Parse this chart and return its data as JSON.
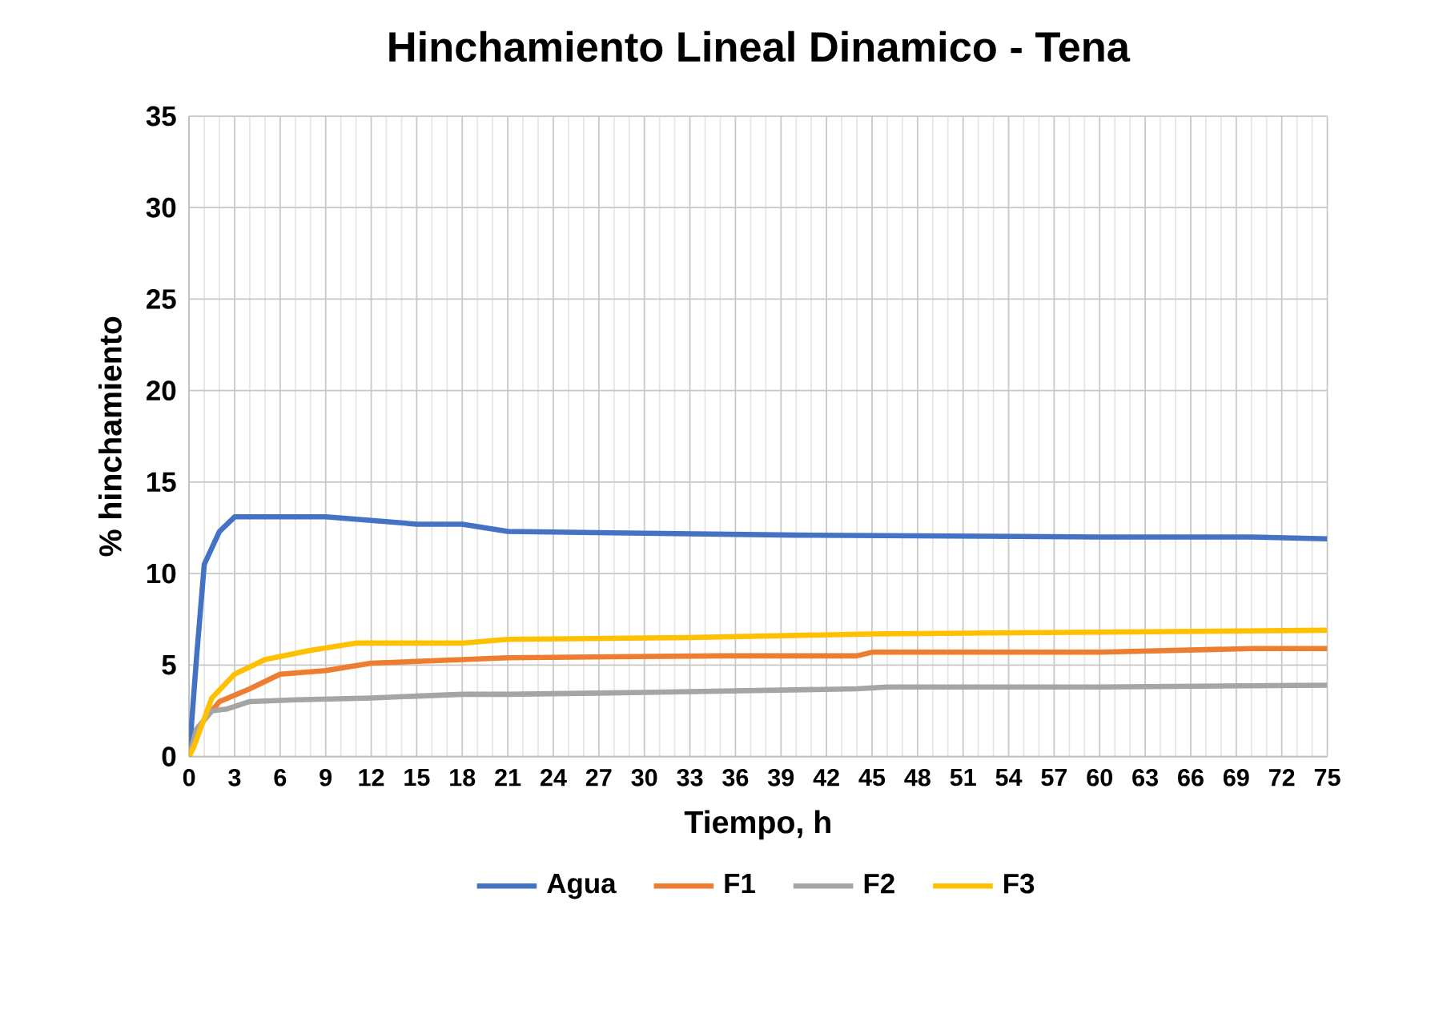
{
  "chart_data": {
    "type": "line",
    "title": "Hinchamiento Lineal Dinamico - Tena",
    "xlabel": "Tiempo, h",
    "ylabel": "% hinchamiento",
    "xlim": [
      0,
      75
    ],
    "xticks": [
      0,
      3,
      6,
      9,
      12,
      15,
      18,
      21,
      24,
      27,
      30,
      33,
      36,
      39,
      42,
      45,
      48,
      51,
      54,
      57,
      60,
      63,
      66,
      69,
      72,
      75
    ],
    "ylim": [
      0,
      35
    ],
    "yticks": [
      0,
      5,
      10,
      15,
      20,
      25,
      30,
      35
    ],
    "grid": true,
    "legend": "bottom",
    "marker": "none",
    "line_style": "solid",
    "series": [
      {
        "name": "Agua",
        "color": "#4472c4",
        "x": [
          0,
          0.5,
          1,
          2,
          3,
          6,
          9,
          12,
          15,
          18,
          21,
          30,
          40,
          60,
          70,
          75
        ],
        "values": [
          0,
          5.5,
          10.5,
          12.3,
          13.1,
          13.1,
          13.1,
          12.9,
          12.7,
          12.7,
          12.3,
          12.2,
          12.1,
          12.0,
          12.0,
          11.9
        ]
      },
      {
        "name": "F1",
        "color": "#ed7d31",
        "x": [
          0,
          0.5,
          1.5,
          2,
          4,
          6,
          9,
          12,
          18,
          21,
          35,
          44,
          45,
          60,
          70,
          75
        ],
        "values": [
          0,
          1.5,
          2.5,
          3.0,
          3.7,
          4.5,
          4.7,
          5.1,
          5.3,
          5.4,
          5.5,
          5.5,
          5.7,
          5.7,
          5.9,
          5.9
        ]
      },
      {
        "name": "F2",
        "color": "#a5a5a5",
        "x": [
          0,
          0.5,
          1.5,
          2.5,
          4,
          7,
          12,
          18,
          21,
          30,
          44,
          46,
          60,
          75
        ],
        "values": [
          0,
          1.5,
          2.5,
          2.6,
          3.0,
          3.1,
          3.2,
          3.4,
          3.4,
          3.5,
          3.7,
          3.8,
          3.8,
          3.9
        ]
      },
      {
        "name": "F3",
        "color": "#ffc000",
        "x": [
          0,
          0.3,
          1.5,
          3,
          5,
          8,
          11,
          18,
          21,
          33,
          45,
          60,
          75
        ],
        "values": [
          0,
          0.5,
          3.2,
          4.5,
          5.3,
          5.8,
          6.2,
          6.2,
          6.4,
          6.5,
          6.7,
          6.8,
          6.9
        ]
      }
    ]
  }
}
